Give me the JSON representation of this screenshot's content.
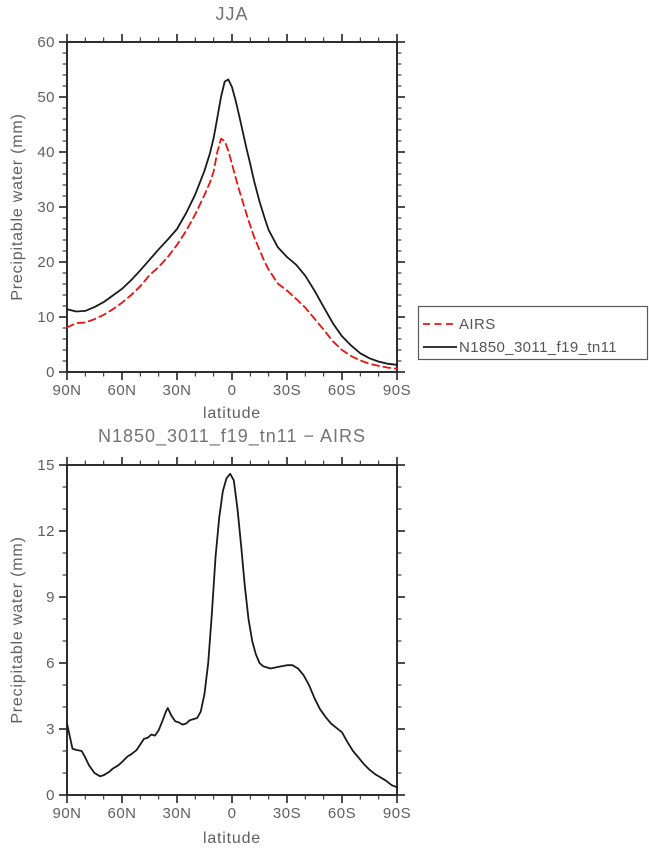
{
  "figure": {
    "background": "#ffffff",
    "axis_color": "#2e2e2e",
    "label_color": "#606060",
    "title_color": "#737373"
  },
  "legend": {
    "entries": [
      {
        "label": "AIRS",
        "color": "#ee1111",
        "style": "dashed"
      },
      {
        "label": "N1850_3011_f19_tn11",
        "color": "#1a1a1a",
        "style": "solid"
      }
    ]
  },
  "chart_data": [
    {
      "type": "line",
      "title": "JJA",
      "xlabel": "latitude",
      "ylabel": "Precipitable water (mm)",
      "xlim": [
        90,
        -90
      ],
      "ylim": [
        0,
        60
      ],
      "grid": false,
      "legend_position": "outside-right",
      "xticks": {
        "values": [
          90,
          60,
          30,
          0,
          -30,
          -60,
          -90
        ],
        "labels": [
          "90N",
          "60N",
          "30N",
          "0",
          "30S",
          "60S",
          "90S"
        ]
      },
      "yticks": [
        0,
        10,
        20,
        30,
        40,
        50,
        60
      ],
      "x_major_step": 30,
      "x_minor_step": 10,
      "y_minor_step": 2,
      "x": [
        90,
        85,
        80,
        75,
        70,
        65,
        60,
        55,
        50,
        45,
        40,
        35,
        30,
        25,
        20,
        15,
        12,
        10,
        8,
        6,
        4,
        2,
        0,
        -2,
        -4,
        -6,
        -8,
        -10,
        -12,
        -15,
        -18,
        -20,
        -25,
        -30,
        -35,
        -40,
        -45,
        -50,
        -55,
        -60,
        -65,
        -70,
        -75,
        -80,
        -85,
        -90
      ],
      "series": [
        {
          "name": "AIRS",
          "color": "#ee1111",
          "style": "dashed",
          "values": [
            8.1,
            8.9,
            9.0,
            9.6,
            10.4,
            11.4,
            12.6,
            14.0,
            15.6,
            17.6,
            19.1,
            20.9,
            23.1,
            25.7,
            28.7,
            32.2,
            34.5,
            36.5,
            40.0,
            42.4,
            42.0,
            40.2,
            37.8,
            35.3,
            33.0,
            30.8,
            28.6,
            26.6,
            24.6,
            22.2,
            19.9,
            18.6,
            16.1,
            14.8,
            13.3,
            11.7,
            9.7,
            7.7,
            5.6,
            4.0,
            2.9,
            2.1,
            1.5,
            1.1,
            0.8,
            0.6
          ]
        },
        {
          "name": "N1850_3011_f19_tn11",
          "color": "#1a1a1a",
          "style": "solid",
          "values": [
            11.4,
            11.0,
            11.1,
            11.8,
            12.7,
            13.9,
            15.1,
            16.7,
            18.5,
            20.4,
            22.3,
            24.1,
            26.0,
            28.9,
            32.3,
            36.6,
            39.8,
            42.6,
            46.2,
            50.0,
            52.8,
            53.2,
            51.8,
            49.3,
            46.5,
            43.5,
            40.5,
            37.8,
            34.8,
            31.0,
            27.8,
            25.8,
            22.7,
            20.9,
            19.5,
            17.5,
            14.8,
            11.8,
            8.9,
            6.5,
            4.8,
            3.4,
            2.5,
            1.9,
            1.5,
            1.3
          ]
        }
      ]
    },
    {
      "type": "line",
      "title": "N1850_3011_f19_tn11 − AIRS",
      "xlabel": "latitude",
      "ylabel": "Precipitable water (mm)",
      "xlim": [
        90,
        -90
      ],
      "ylim": [
        0,
        15
      ],
      "grid": false,
      "legend_position": "none",
      "xticks": {
        "values": [
          90,
          60,
          30,
          0,
          -30,
          -60,
          -90
        ],
        "labels": [
          "90N",
          "60N",
          "30N",
          "0",
          "30S",
          "60S",
          "90S"
        ]
      },
      "yticks": [
        0,
        3,
        6,
        9,
        12,
        15
      ],
      "x_major_step": 30,
      "x_minor_step": 10,
      "y_minor_step": 1,
      "x": [
        90,
        87,
        85,
        82,
        80,
        78,
        75,
        72,
        70,
        67,
        65,
        62,
        60,
        57,
        55,
        52,
        50,
        48,
        46,
        44,
        42,
        40,
        38,
        36,
        35,
        33,
        31,
        29,
        27,
        25,
        23,
        21,
        19,
        17,
        15,
        13,
        11,
        9,
        7,
        5,
        3,
        1,
        -1,
        -3,
        -5,
        -7,
        -9,
        -11,
        -13,
        -15,
        -17,
        -19,
        -21,
        -24,
        -27,
        -30,
        -33,
        -36,
        -39,
        -42,
        -45,
        -48,
        -51,
        -54,
        -57,
        -60,
        -63,
        -66,
        -69,
        -72,
        -75,
        -78,
        -81,
        -84,
        -87,
        -90
      ],
      "series": [
        {
          "name": "N1850_3011_f19_tn11 minus AIRS",
          "color": "#1a1a1a",
          "style": "solid",
          "values": [
            3.25,
            2.1,
            2.05,
            2.0,
            1.7,
            1.35,
            1.0,
            0.85,
            0.9,
            1.05,
            1.2,
            1.35,
            1.5,
            1.75,
            1.85,
            2.05,
            2.3,
            2.55,
            2.6,
            2.75,
            2.7,
            2.95,
            3.35,
            3.8,
            3.95,
            3.6,
            3.35,
            3.3,
            3.2,
            3.25,
            3.4,
            3.45,
            3.5,
            3.8,
            4.6,
            6.0,
            8.2,
            10.8,
            12.6,
            13.8,
            14.4,
            14.6,
            14.3,
            13.0,
            11.3,
            9.5,
            8.0,
            7.0,
            6.4,
            6.0,
            5.85,
            5.8,
            5.75,
            5.8,
            5.85,
            5.9,
            5.9,
            5.75,
            5.45,
            5.0,
            4.4,
            3.9,
            3.55,
            3.25,
            3.05,
            2.85,
            2.4,
            2.0,
            1.7,
            1.4,
            1.15,
            0.95,
            0.8,
            0.65,
            0.45,
            0.35
          ]
        }
      ]
    }
  ]
}
